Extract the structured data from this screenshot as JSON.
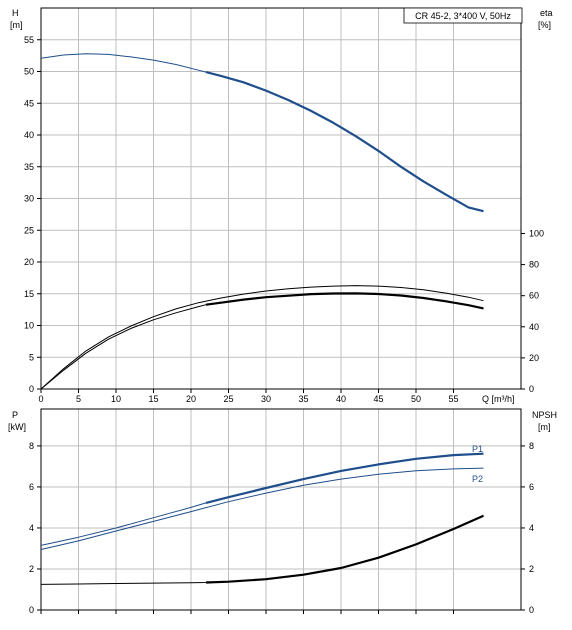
{
  "title_box": "CR 45-2, 3*400 V, 50Hz",
  "colors": {
    "blue": "#1f4e8c",
    "black": "#000000",
    "grid": "#bfbfbf",
    "axis": "#000000"
  },
  "chart_data": [
    {
      "type": "line",
      "panel": "top",
      "xlabel": "Q [m³/h]",
      "xlim": [
        0,
        64
      ],
      "xticks": [
        0,
        5,
        10,
        15,
        20,
        25,
        30,
        35,
        40,
        45,
        50,
        55
      ],
      "ylabel_left_name": "H",
      "ylabel_left_unit": "[m]",
      "ylim_left": [
        0,
        60
      ],
      "yticks_left": [
        0,
        5,
        10,
        15,
        20,
        25,
        30,
        35,
        40,
        45,
        50,
        55
      ],
      "ylabel_right_name": "eta",
      "ylabel_right_unit": "[%]",
      "ylim_right": [
        0,
        245
      ],
      "yticks_right": [
        0,
        20,
        40,
        60,
        80,
        100
      ],
      "grid": true,
      "series": [
        {
          "axis": "left",
          "color": "#1f4e8c",
          "x": [
            0,
            3,
            6,
            9,
            12,
            15,
            18,
            21,
            22,
            24,
            27,
            30,
            33,
            36,
            39,
            42,
            45,
            48,
            51,
            54,
            57,
            59
          ],
          "y": [
            52.1,
            52.6,
            52.8,
            52.7,
            52.3,
            51.8,
            51.1,
            50.2,
            49.9,
            49.3,
            48.3,
            47.0,
            45.5,
            43.8,
            41.9,
            39.8,
            37.5,
            35.0,
            32.7,
            30.6,
            28.6,
            28.0
          ],
          "bold_from_x": 22
        },
        {
          "axis": "right",
          "color": "#000000",
          "x": [
            0,
            3,
            6,
            9,
            12,
            15,
            18,
            21,
            24,
            27,
            30,
            33,
            36,
            39,
            42,
            45,
            48,
            51,
            54,
            57,
            59
          ],
          "y": [
            0,
            13,
            24.5,
            33.5,
            40.5,
            46.5,
            51.5,
            55.5,
            58.5,
            61,
            63,
            64.5,
            65.5,
            66.2,
            66.5,
            66.2,
            65.3,
            63.8,
            61.7,
            59,
            56.8
          ]
        },
        {
          "axis": "right",
          "color": "#000000",
          "x": [
            0,
            3,
            6,
            9,
            12,
            15,
            18,
            21,
            22,
            24,
            27,
            30,
            33,
            36,
            39,
            42,
            45,
            48,
            51,
            54,
            57,
            59
          ],
          "y": [
            0,
            12,
            23,
            32,
            39,
            44.5,
            49,
            53,
            54.2,
            55.5,
            57.5,
            59,
            60,
            61,
            61.4,
            61.5,
            61.1,
            60.1,
            58.5,
            56.4,
            53.9,
            51.8
          ],
          "bold_from_x": 22
        }
      ]
    },
    {
      "type": "line",
      "panel": "bottom",
      "xlim": [
        0,
        64
      ],
      "ylabel_left_name": "P",
      "ylabel_left_unit": "[kW]",
      "ylim_left": [
        0,
        9.8
      ],
      "yticks_left": [
        0,
        2,
        4,
        6,
        8
      ],
      "ylabel_right_name": "NPSH",
      "ylabel_right_unit": "[m]",
      "ylim_right": [
        0,
        9.8
      ],
      "yticks_right": [
        0,
        2,
        4,
        6,
        8
      ],
      "grid": true,
      "series": [
        {
          "name": "P1",
          "axis": "left",
          "color": "#1f4e8c",
          "x": [
            0,
            5,
            10,
            15,
            20,
            22,
            25,
            30,
            35,
            40,
            45,
            50,
            55,
            59
          ],
          "y": [
            3.15,
            3.55,
            4.0,
            4.5,
            5.0,
            5.22,
            5.5,
            5.95,
            6.38,
            6.78,
            7.1,
            7.37,
            7.55,
            7.62
          ],
          "bold_from_x": 22
        },
        {
          "name": "P2",
          "axis": "left",
          "color": "#1f4e8c",
          "x": [
            0,
            5,
            10,
            15,
            20,
            25,
            30,
            35,
            40,
            45,
            50,
            55,
            59
          ],
          "y": [
            2.95,
            3.37,
            3.85,
            4.32,
            4.8,
            5.28,
            5.7,
            6.08,
            6.38,
            6.62,
            6.79,
            6.88,
            6.92
          ]
        },
        {
          "axis": "right",
          "color": "#000000",
          "x": [
            0,
            5,
            10,
            15,
            20,
            22,
            25,
            30,
            35,
            40,
            45,
            50,
            55,
            59
          ],
          "y": [
            1.25,
            1.27,
            1.29,
            1.31,
            1.33,
            1.34,
            1.38,
            1.5,
            1.72,
            2.05,
            2.55,
            3.2,
            3.95,
            4.6
          ],
          "bold_from_x": 22
        }
      ]
    }
  ]
}
